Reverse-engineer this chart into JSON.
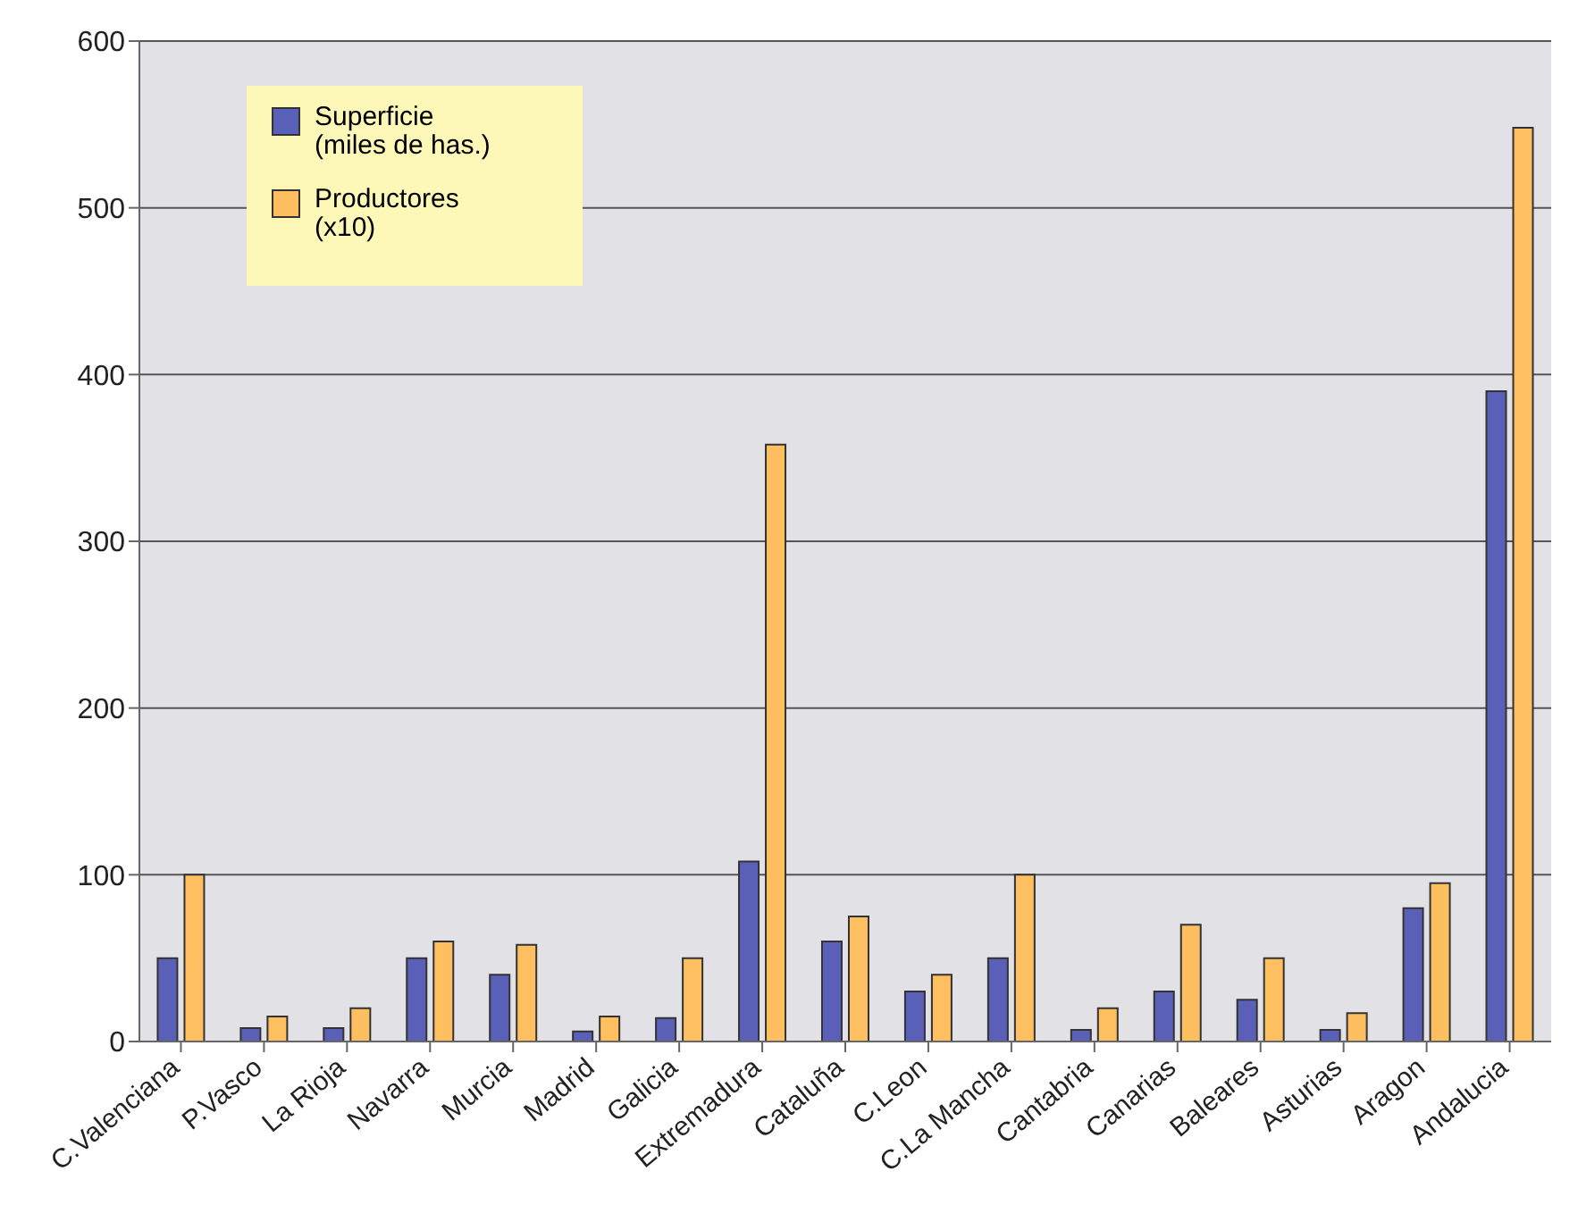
{
  "chart_data": {
    "type": "bar",
    "categories": [
      "C.Valenciana",
      "P.Vasco",
      "La Rioja",
      "Navarra",
      "Murcia",
      "Madrid",
      "Galicia",
      "Extremadura",
      "Cataluña",
      "C.Leon",
      "C.La Mancha",
      "Cantabria",
      "Canarias",
      "Baleares",
      "Asturias",
      "Aragon",
      "Andalucia"
    ],
    "series": [
      {
        "name": "Superficie\n(miles de has.)",
        "color": "#5a5fb8",
        "values": [
          50,
          8,
          8,
          50,
          40,
          6,
          14,
          108,
          60,
          30,
          50,
          7,
          30,
          25,
          7,
          80,
          390
        ]
      },
      {
        "name": "Productores\n(x10)",
        "color": "#fdbf5f",
        "values": [
          100,
          15,
          20,
          60,
          58,
          15,
          50,
          358,
          75,
          40,
          100,
          20,
          70,
          50,
          17,
          95,
          548
        ]
      }
    ],
    "ylim": [
      0,
      600
    ],
    "yticks": [
      0,
      100,
      200,
      300,
      400,
      500,
      600
    ],
    "grid": "y",
    "legend": "top left"
  }
}
